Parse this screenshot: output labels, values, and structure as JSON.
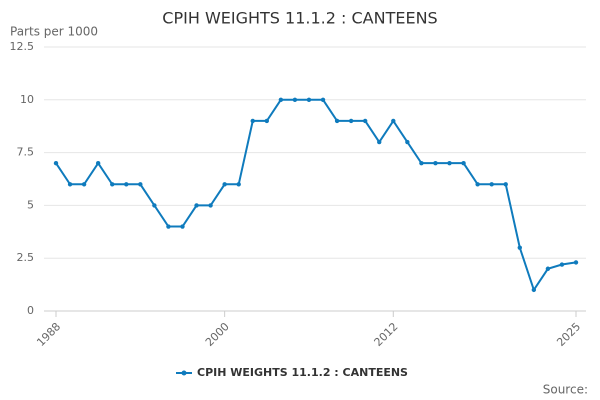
{
  "chart_data": {
    "type": "line",
    "title": "CPIH WEIGHTS 11.1.2 : CANTEENS",
    "y_label": "Parts per 1000",
    "source": "Source:",
    "x": [
      1988,
      1989,
      1990,
      1991,
      1992,
      1993,
      1994,
      1995,
      1996,
      1997,
      1998,
      1999,
      2000,
      2001,
      2002,
      2003,
      2004,
      2005,
      2006,
      2007,
      2008,
      2009,
      2010,
      2011,
      2012,
      2013,
      2014,
      2015,
      2016,
      2017,
      2018,
      2019,
      2020,
      2021,
      2022,
      2023,
      2024,
      2025
    ],
    "series": [
      {
        "name": "CPIH WEIGHTS 11.1.2 : CANTEENS",
        "color": "#0f7bbd",
        "values": [
          7,
          6,
          6,
          7,
          6,
          6,
          6,
          5,
          4,
          4,
          5,
          5,
          6,
          6,
          9,
          9,
          10,
          10,
          10,
          10,
          9,
          9,
          9,
          8,
          9,
          8,
          7,
          7,
          7,
          7,
          6,
          6,
          6,
          3,
          1,
          2,
          2.2,
          2.3
        ]
      }
    ],
    "xlim": [
      1988,
      2025
    ],
    "xticks": [
      1988,
      2000,
      2012,
      2025
    ],
    "ylim": [
      0,
      12.5
    ],
    "yticks": [
      0,
      2.5,
      5,
      7.5,
      10,
      12.5
    ],
    "grid": true
  }
}
